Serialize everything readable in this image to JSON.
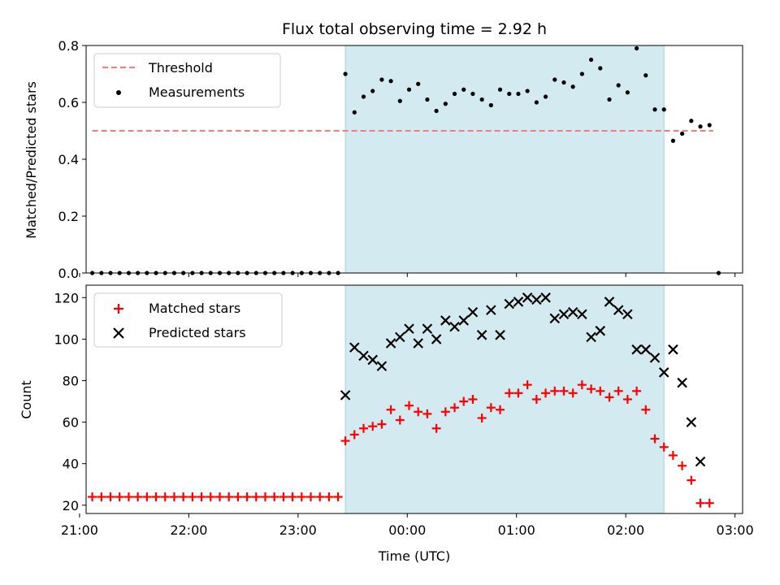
{
  "chart_data": [
    {
      "type": "scatter",
      "title": "Flux total observing time = 2.92 h",
      "xlabel": "",
      "ylabel": "Matched/Predicted stars",
      "ylim": [
        0,
        0.8
      ],
      "xlim_hours": [
        -2.94,
        3.07
      ],
      "yticks": [
        "0.0",
        "0.2",
        "0.4",
        "0.6",
        "0.8"
      ],
      "highlight_window": {
        "start": "23:26",
        "end": "02:21",
        "color": "#d3eaf0"
      },
      "threshold": {
        "value": 0.5,
        "x_start": "21:07",
        "x_end": "02:48",
        "color": "#f47c7c",
        "style": "dashed"
      },
      "legend": {
        "position": "top-left",
        "entries": [
          "Threshold",
          "Measurements"
        ]
      },
      "series": [
        {
          "name": "Measurements",
          "color": "#000000",
          "marker": "dot",
          "x": [
            "21:07",
            "21:12",
            "21:17",
            "21:22",
            "21:27",
            "21:32",
            "21:37",
            "21:42",
            "21:47",
            "21:52",
            "21:57",
            "22:02",
            "22:07",
            "22:12",
            "22:17",
            "22:22",
            "22:27",
            "22:32",
            "22:37",
            "22:42",
            "22:47",
            "22:52",
            "22:57",
            "23:02",
            "23:07",
            "23:12",
            "23:17",
            "23:22",
            "23:26",
            "23:31",
            "23:36",
            "23:41",
            "23:46",
            "23:51",
            "23:56",
            "00:01",
            "00:06",
            "00:11",
            "00:16",
            "00:21",
            "00:26",
            "00:31",
            "00:36",
            "00:41",
            "00:46",
            "00:51",
            "00:56",
            "01:01",
            "01:06",
            "01:11",
            "01:16",
            "01:21",
            "01:26",
            "01:31",
            "01:36",
            "01:41",
            "01:46",
            "01:51",
            "01:56",
            "02:01",
            "02:06",
            "02:11",
            "02:16",
            "02:21",
            "02:26",
            "02:31",
            "02:36",
            "02:41",
            "02:46",
            "02:51"
          ],
          "y": [
            0,
            0,
            0,
            0,
            0,
            0,
            0,
            0,
            0,
            0,
            0,
            0,
            0,
            0,
            0,
            0,
            0,
            0,
            0,
            0,
            0,
            0,
            0,
            0,
            0,
            0,
            0,
            0,
            0.7,
            0.565,
            0.62,
            0.64,
            0.68,
            0.675,
            0.605,
            0.645,
            0.665,
            0.61,
            0.57,
            0.595,
            0.63,
            0.645,
            0.63,
            0.61,
            0.59,
            0.645,
            0.63,
            0.63,
            0.64,
            0.6,
            0.62,
            0.68,
            0.67,
            0.655,
            0.7,
            0.75,
            0.72,
            0.61,
            0.66,
            0.635,
            0.79,
            0.695,
            0.575,
            0.575,
            0.465,
            0.49,
            0.535,
            0.515,
            0.52,
            0.0
          ]
        }
      ]
    },
    {
      "type": "scatter",
      "title": "",
      "xlabel": "Time (UTC)",
      "ylabel": "Count",
      "ylim": [
        16,
        126
      ],
      "xlim_hours": [
        -2.94,
        3.07
      ],
      "yticks": [
        "20",
        "40",
        "60",
        "80",
        "100",
        "120"
      ],
      "xticks": [
        "21:00",
        "22:00",
        "23:00",
        "00:00",
        "01:00",
        "02:00",
        "03:00"
      ],
      "highlight_window": {
        "start": "23:26",
        "end": "02:21",
        "color": "#d3eaf0"
      },
      "legend": {
        "position": "top-left",
        "entries": [
          "Matched stars",
          "Predicted stars"
        ]
      },
      "series": [
        {
          "name": "Matched stars",
          "color": "#ff0000",
          "marker": "plus",
          "x": [
            "21:07",
            "21:12",
            "21:17",
            "21:22",
            "21:27",
            "21:32",
            "21:37",
            "21:42",
            "21:47",
            "21:52",
            "21:57",
            "22:02",
            "22:07",
            "22:12",
            "22:17",
            "22:22",
            "22:27",
            "22:32",
            "22:37",
            "22:42",
            "22:47",
            "22:52",
            "22:57",
            "23:02",
            "23:07",
            "23:12",
            "23:17",
            "23:22",
            "23:26",
            "23:31",
            "23:36",
            "23:41",
            "23:46",
            "23:51",
            "23:56",
            "00:01",
            "00:06",
            "00:11",
            "00:16",
            "00:21",
            "00:26",
            "00:31",
            "00:36",
            "00:41",
            "00:46",
            "00:51",
            "00:56",
            "01:01",
            "01:06",
            "01:11",
            "01:16",
            "01:21",
            "01:26",
            "01:31",
            "01:36",
            "01:41",
            "01:46",
            "01:51",
            "01:56",
            "02:01",
            "02:06",
            "02:11",
            "02:16",
            "02:21",
            "02:26",
            "02:31",
            "02:36",
            "02:41",
            "02:46",
            "02:51"
          ],
          "y": [
            24,
            24,
            24,
            24,
            24,
            24,
            24,
            24,
            24,
            24,
            24,
            24,
            24,
            24,
            24,
            24,
            24,
            24,
            24,
            24,
            24,
            24,
            24,
            24,
            24,
            24,
            24,
            24,
            51,
            54,
            57,
            58,
            59,
            66,
            61,
            68,
            65,
            64,
            57,
            65,
            67,
            70,
            71,
            62,
            67,
            66,
            74,
            74,
            78,
            71,
            74,
            75,
            75,
            74,
            78,
            76,
            75,
            72,
            75,
            71,
            75,
            66,
            52,
            48,
            44,
            39,
            32,
            21,
            21,
            null
          ]
        },
        {
          "name": "Predicted stars",
          "color": "#000000",
          "marker": "x",
          "x": [
            "23:26",
            "23:31",
            "23:36",
            "23:41",
            "23:46",
            "23:51",
            "23:56",
            "00:01",
            "00:06",
            "00:11",
            "00:16",
            "00:21",
            "00:26",
            "00:31",
            "00:36",
            "00:41",
            "00:46",
            "00:51",
            "00:56",
            "01:01",
            "01:06",
            "01:11",
            "01:16",
            "01:21",
            "01:26",
            "01:31",
            "01:36",
            "01:41",
            "01:46",
            "01:51",
            "01:56",
            "02:01",
            "02:06",
            "02:11",
            "02:16",
            "02:21",
            "02:26",
            "02:31",
            "02:36",
            "02:41"
          ],
          "y": [
            73,
            96,
            92,
            90,
            87,
            98,
            101,
            105,
            98,
            105,
            100,
            109,
            106,
            109,
            113,
            102,
            114,
            102,
            117,
            118,
            120,
            119,
            120,
            110,
            112,
            113,
            112,
            101,
            104,
            118,
            114,
            112,
            95,
            95,
            91,
            84,
            95,
            79,
            60,
            41
          ]
        }
      ]
    }
  ]
}
